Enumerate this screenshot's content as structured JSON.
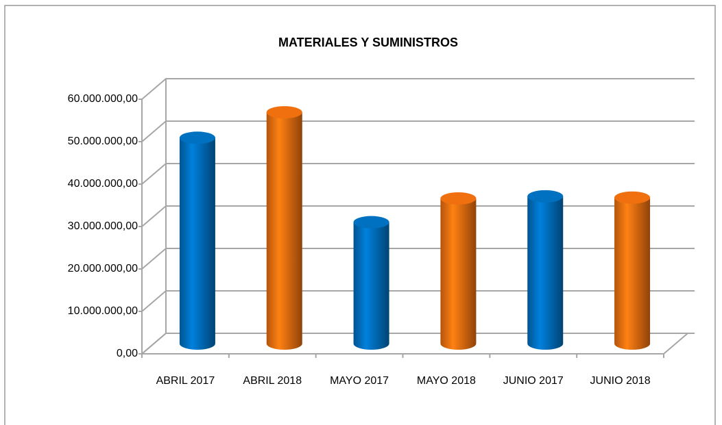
{
  "chart_data": {
    "type": "bar3d",
    "title": "MATERIALES Y SUMINISTROS",
    "categories": [
      "ABRIL 2017",
      "ABRIL 2018",
      "MAYO 2017",
      "MAYO 2018",
      "JUNIO 2017",
      "JUNIO 2018"
    ],
    "values": [
      48500000,
      54500000,
      28600000,
      34200000,
      34700000,
      34400000
    ],
    "colors": [
      "#0070c0",
      "#f07010",
      "#0070c0",
      "#f07010",
      "#0070c0",
      "#f07010"
    ],
    "ylim": [
      0,
      60000000
    ],
    "yticks": [
      {
        "value": 0,
        "label": "0,00"
      },
      {
        "value": 10000000,
        "label": "10.000.000,00"
      },
      {
        "value": 20000000,
        "label": "20.000.000,00"
      },
      {
        "value": 30000000,
        "label": "30.000.000,00"
      },
      {
        "value": 40000000,
        "label": "40.000.000,00"
      },
      {
        "value": 50000000,
        "label": "50.000.000,00"
      },
      {
        "value": 60000000,
        "label": "60.000.000,00"
      }
    ],
    "grid": true
  }
}
